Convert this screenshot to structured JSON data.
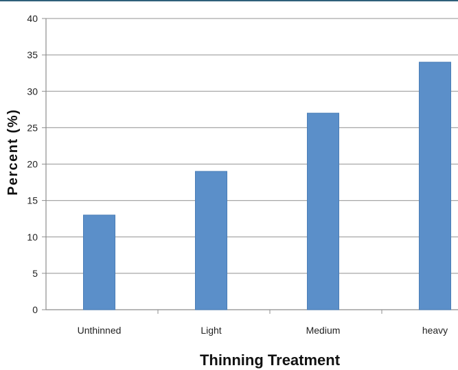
{
  "chart_data": {
    "type": "bar",
    "title": "",
    "xlabel": "Thinning Treatment",
    "ylabel": "Percent (%)",
    "categories": [
      "Unthinned",
      "Light",
      "Medium",
      "heavy"
    ],
    "values": [
      13,
      19,
      27,
      34
    ],
    "ylim": [
      0,
      40
    ],
    "yticks": [
      0,
      5,
      10,
      15,
      20,
      25,
      30,
      35,
      40
    ],
    "grid": true,
    "legend": "none",
    "colors": {
      "bar": "#5b8fc9",
      "bar_stroke": "#4a7db6",
      "gridline": "#a6a6a6",
      "axis": "#8c8c8c",
      "top_rule": "#2f5f7a"
    }
  }
}
